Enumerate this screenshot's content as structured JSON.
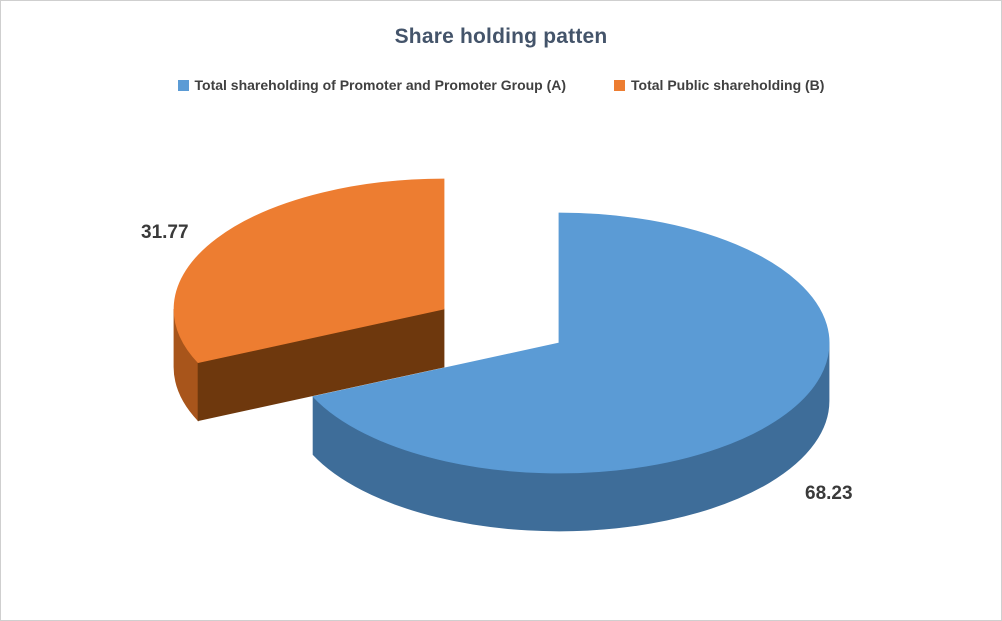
{
  "title": "Share holding patten",
  "legend": {
    "items": [
      {
        "label": "Total shareholding of Promoter and Promoter Group (A)",
        "color": "#5B9BD5"
      },
      {
        "label": "Total Public shareholding (B)",
        "color": "#ED7D31"
      }
    ]
  },
  "chart_data": {
    "type": "pie",
    "style": "3d-exploded",
    "title": "Share holding patten",
    "labels": [
      "Total shareholding of Promoter and Promoter Group (A)",
      "Total Public shareholding (B)"
    ],
    "values": [
      68.23,
      31.77
    ],
    "data_labels": [
      "68.23",
      "31.77"
    ],
    "colors": [
      "#5B9BD5",
      "#ED7D31"
    ],
    "side_colors": [
      "#3E6D99",
      "#A8551B"
    ],
    "face_colors": [
      "#365F86",
      "#6E380D"
    ],
    "slice_ids": [
      "promoter-group",
      "public"
    ],
    "start_angle_deg": 0,
    "clockwise": true,
    "legend_position": "top",
    "background": "#FFFFFF",
    "title_color": "#44546A",
    "label_color": "#3A3A3A"
  }
}
